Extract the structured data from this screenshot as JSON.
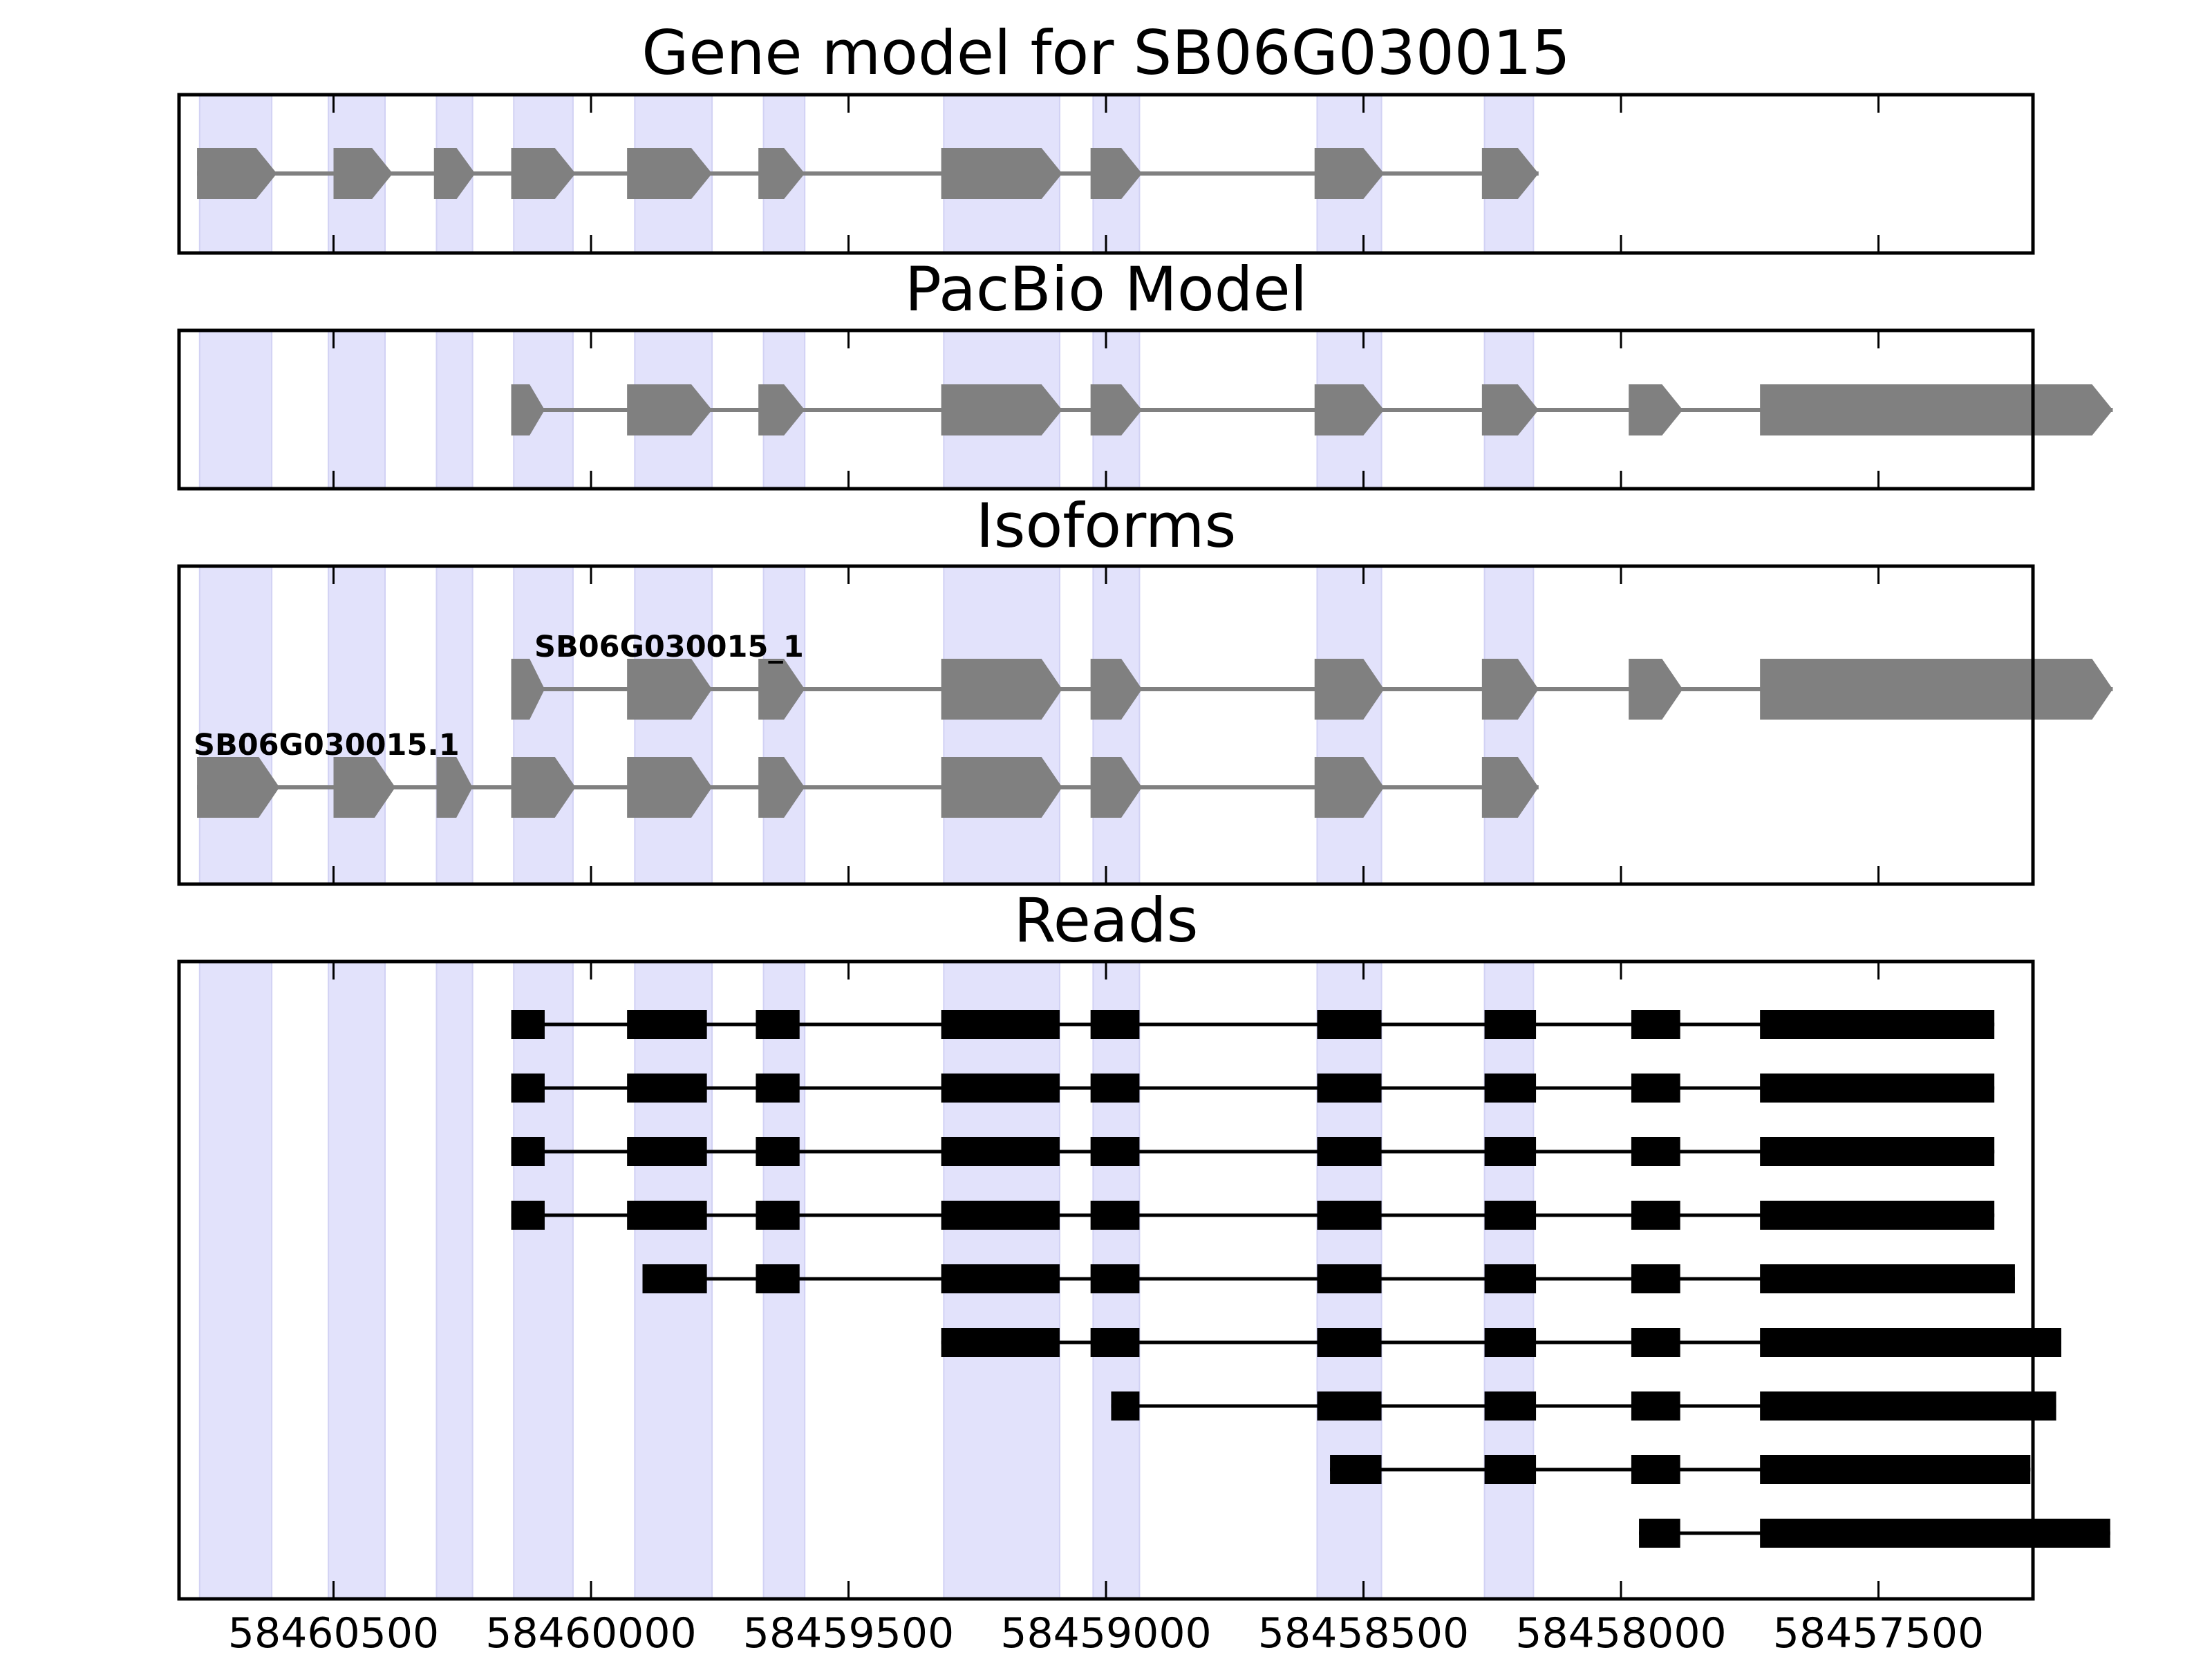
{
  "chart_data": {
    "type": "gene-structure",
    "x_direction": "descending",
    "xlim": [
      58460800,
      58457200
    ],
    "xticks": [
      58460500,
      58460000,
      58459500,
      58459000,
      58458500,
      58458000,
      58457500
    ],
    "xtick_labels": [
      "58460500",
      "58460000",
      "58459500",
      "58459000",
      "58458500",
      "58458000",
      "58457500"
    ],
    "highlight_color": "#e2e2fb",
    "model_color": "#808080",
    "read_color": "#000000",
    "highlight_exons": [
      [
        58460760,
        58460620
      ],
      [
        58460510,
        58460400
      ],
      [
        58460300,
        58460230
      ],
      [
        58460150,
        58460035
      ],
      [
        58459915,
        58459765
      ],
      [
        58459665,
        58459585
      ],
      [
        58459315,
        58459090
      ],
      [
        58459025,
        58458935
      ],
      [
        58458590,
        58458465
      ],
      [
        58458265,
        58458170
      ]
    ],
    "panels": [
      {
        "title": "Gene model for SB06G030015",
        "tracks": [
          {
            "label": "",
            "exons": [
              [
                58460765,
                58460610
              ],
              [
                58460500,
                58460385
              ],
              [
                58460305,
                58460225
              ],
              [
                58460155,
                58460030
              ],
              [
                58459930,
                58459765
              ],
              [
                58459675,
                58459585
              ],
              [
                58459320,
                58459085
              ],
              [
                58459030,
                58458930
              ],
              [
                58458595,
                58458460
              ],
              [
                58458270,
                58458160
              ]
            ]
          }
        ]
      },
      {
        "title": "PacBio Model",
        "tracks": [
          {
            "label": "",
            "exons": [
              [
                58460155,
                58460090
              ],
              [
                58459930,
                58459765
              ],
              [
                58459675,
                58459585
              ],
              [
                58459320,
                58459085
              ],
              [
                58459030,
                58458930
              ],
              [
                58458595,
                58458460
              ],
              [
                58458270,
                58458160
              ],
              [
                58457985,
                58457880
              ],
              [
                58457730,
                58457045
              ]
            ]
          }
        ]
      },
      {
        "title": "Isoforms",
        "tracks": [
          {
            "label": "SB06G030015_1",
            "exons": [
              [
                58460155,
                58460090
              ],
              [
                58459930,
                58459765
              ],
              [
                58459675,
                58459585
              ],
              [
                58459320,
                58459085
              ],
              [
                58459030,
                58458930
              ],
              [
                58458595,
                58458460
              ],
              [
                58458270,
                58458160
              ],
              [
                58457985,
                58457880
              ],
              [
                58457730,
                58457045
              ]
            ]
          },
          {
            "label": "SB06G030015.1",
            "exons": [
              [
                58460765,
                58460605
              ],
              [
                58460500,
                58460380
              ],
              [
                58460300,
                58460230
              ],
              [
                58460155,
                58460030
              ],
              [
                58459930,
                58459765
              ],
              [
                58459675,
                58459585
              ],
              [
                58459320,
                58459085
              ],
              [
                58459030,
                58458930
              ],
              [
                58458595,
                58458460
              ],
              [
                58458270,
                58458160
              ]
            ]
          }
        ]
      },
      {
        "title": "Reads",
        "tracks": [
          {
            "label": "",
            "exons": [
              [
                58460155,
                58460090
              ],
              [
                58459930,
                58459775
              ],
              [
                58459680,
                58459595
              ],
              [
                58459320,
                58459090
              ],
              [
                58459030,
                58458935
              ],
              [
                58458590,
                58458465
              ],
              [
                58458265,
                58458165
              ],
              [
                58457980,
                58457885
              ],
              [
                58457730,
                58457275
              ]
            ]
          },
          {
            "label": "",
            "exons": [
              [
                58460155,
                58460090
              ],
              [
                58459930,
                58459775
              ],
              [
                58459680,
                58459595
              ],
              [
                58459320,
                58459090
              ],
              [
                58459030,
                58458935
              ],
              [
                58458590,
                58458465
              ],
              [
                58458265,
                58458165
              ],
              [
                58457980,
                58457885
              ],
              [
                58457730,
                58457275
              ]
            ]
          },
          {
            "label": "",
            "exons": [
              [
                58460155,
                58460090
              ],
              [
                58459930,
                58459775
              ],
              [
                58459680,
                58459595
              ],
              [
                58459320,
                58459090
              ],
              [
                58459030,
                58458935
              ],
              [
                58458590,
                58458465
              ],
              [
                58458265,
                58458165
              ],
              [
                58457980,
                58457885
              ],
              [
                58457730,
                58457275
              ]
            ]
          },
          {
            "label": "",
            "exons": [
              [
                58460155,
                58460090
              ],
              [
                58459930,
                58459775
              ],
              [
                58459680,
                58459595
              ],
              [
                58459320,
                58459090
              ],
              [
                58459030,
                58458935
              ],
              [
                58458590,
                58458465
              ],
              [
                58458265,
                58458165
              ],
              [
                58457980,
                58457885
              ],
              [
                58457730,
                58457275
              ]
            ]
          },
          {
            "label": "",
            "exons": [
              [
                58459900,
                58459775
              ],
              [
                58459680,
                58459595
              ],
              [
                58459320,
                58459090
              ],
              [
                58459030,
                58458935
              ],
              [
                58458590,
                58458465
              ],
              [
                58458265,
                58458165
              ],
              [
                58457980,
                58457885
              ],
              [
                58457730,
                58457235
              ]
            ]
          },
          {
            "label": "",
            "exons": [
              [
                58459320,
                58459090
              ],
              [
                58459030,
                58458935
              ],
              [
                58458590,
                58458465
              ],
              [
                58458265,
                58458165
              ],
              [
                58457980,
                58457885
              ],
              [
                58457730,
                58457145
              ]
            ]
          },
          {
            "label": "",
            "exons": [
              [
                58458990,
                58458935
              ],
              [
                58458590,
                58458465
              ],
              [
                58458265,
                58458165
              ],
              [
                58457980,
                58457885
              ],
              [
                58457730,
                58457155
              ]
            ]
          },
          {
            "label": "",
            "exons": [
              [
                58458565,
                58458465
              ],
              [
                58458265,
                58458165
              ],
              [
                58457980,
                58457885
              ],
              [
                58457730,
                58457205
              ]
            ]
          },
          {
            "label": "",
            "exons": [
              [
                58457965,
                58457885
              ],
              [
                58457730,
                58457050
              ]
            ]
          }
        ]
      }
    ]
  }
}
